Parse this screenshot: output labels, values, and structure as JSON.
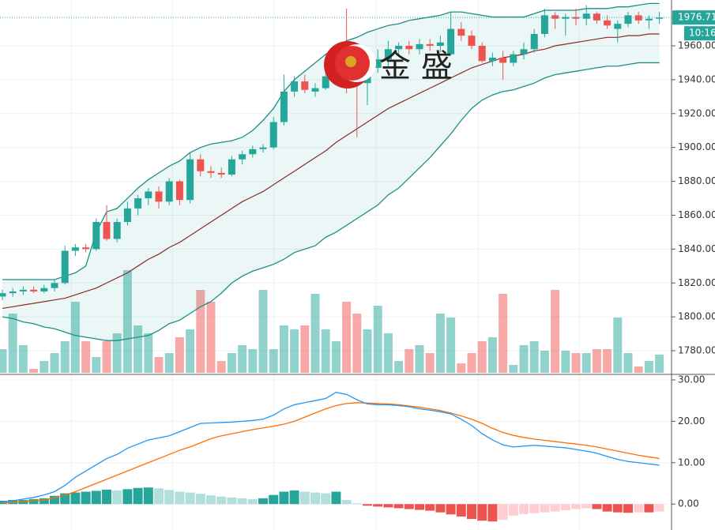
{
  "chart_data": [
    {
      "type": "candlestick",
      "open": [
        1812,
        1814,
        1815,
        1816,
        1815,
        1817,
        1820,
        1839,
        1841,
        1840,
        1856,
        1846,
        1856,
        1864,
        1870,
        1874,
        1868,
        1880,
        1869,
        1893,
        1886,
        1885,
        1884,
        1893,
        1896,
        1899,
        1900,
        1915,
        1933,
        1939,
        1933,
        1935,
        1942,
        1955,
        1946,
        1938,
        1947,
        1952,
        1958,
        1960,
        1958,
        1961,
        1960,
        1955,
        1970,
        1966,
        1960,
        1951,
        1953,
        1950,
        1955,
        1958,
        1967,
        1978,
        1976,
        1977,
        1976,
        1979,
        1975,
        1970,
        1973,
        1978,
        1975,
        1976
      ],
      "high": [
        1816,
        1817,
        1818,
        1818,
        1819,
        1822,
        1842,
        1843,
        1843,
        1858,
        1866,
        1858,
        1868,
        1872,
        1876,
        1877,
        1882,
        1881,
        1897,
        1896,
        1889,
        1888,
        1895,
        1898,
        1901,
        1902,
        1918,
        1943,
        1942,
        1943,
        1938,
        1945,
        1960,
        1982,
        1952,
        1950,
        1958,
        1963,
        1962,
        1963,
        1964,
        1964,
        1966,
        1980,
        1974,
        1969,
        1962,
        1956,
        1957,
        1957,
        1962,
        1970,
        1982,
        1980,
        1979,
        1982,
        1984,
        1980,
        1978,
        1975,
        1980,
        1980,
        1978,
        1980
      ],
      "low": [
        1810,
        1812,
        1813,
        1814,
        1814,
        1815,
        1819,
        1836,
        1838,
        1839,
        1845,
        1844,
        1854,
        1860,
        1866,
        1864,
        1866,
        1866,
        1867,
        1883,
        1882,
        1882,
        1883,
        1890,
        1894,
        1897,
        1899,
        1913,
        1930,
        1932,
        1930,
        1934,
        1940,
        1932,
        1906,
        1925,
        1944,
        1948,
        1954,
        1955,
        1955,
        1957,
        1956,
        1954,
        1963,
        1958,
        1950,
        1948,
        1940,
        1948,
        1952,
        1956,
        1965,
        1970,
        1966,
        1972,
        1972,
        1973,
        1970,
        1962,
        1971,
        1973,
        1970,
        1973
      ],
      "close": [
        1814,
        1815,
        1816,
        1815,
        1817,
        1820,
        1839,
        1841,
        1840,
        1856,
        1846,
        1856,
        1864,
        1870,
        1874,
        1868,
        1880,
        1869,
        1893,
        1886,
        1885,
        1884,
        1893,
        1896,
        1899,
        1900,
        1915,
        1933,
        1939,
        1934,
        1935,
        1942,
        1955,
        1935,
        1938,
        1947,
        1952,
        1958,
        1960,
        1958,
        1961,
        1960,
        1962,
        1970,
        1966,
        1960,
        1951,
        1953,
        1950,
        1955,
        1958,
        1967,
        1978,
        1976,
        1977,
        1976,
        1979,
        1975,
        1972,
        1973,
        1978,
        1975,
        1976,
        1976.71
      ],
      "volume": [
        30,
        75,
        35,
        5,
        15,
        25,
        40,
        90,
        40,
        20,
        40,
        50,
        130,
        60,
        50,
        20,
        25,
        45,
        55,
        105,
        90,
        15,
        25,
        35,
        30,
        105,
        30,
        60,
        55,
        60,
        100,
        55,
        40,
        90,
        75,
        55,
        85,
        50,
        15,
        30,
        35,
        25,
        75,
        70,
        12,
        25,
        40,
        45,
        100,
        10,
        35,
        40,
        28,
        105,
        28,
        25,
        25,
        30,
        30,
        70,
        25,
        8,
        15,
        23
      ],
      "upper": [
        1822,
        1822,
        1822,
        1822,
        1822,
        1822,
        1824,
        1826,
        1830,
        1850,
        1862,
        1864,
        1870,
        1876,
        1881,
        1885,
        1889,
        1892,
        1897,
        1900,
        1902,
        1903,
        1904,
        1906,
        1910,
        1916,
        1923,
        1933,
        1940,
        1945,
        1950,
        1955,
        1959,
        1963,
        1965,
        1968,
        1970,
        1972,
        1973,
        1975,
        1976,
        1977,
        1978,
        1980,
        1980,
        1979,
        1978,
        1977,
        1977,
        1977,
        1977,
        1979,
        1981,
        1981,
        1981,
        1981,
        1982,
        1982,
        1982,
        1983,
        1983,
        1984,
        1985,
        1985
      ],
      "middle": [
        1805,
        1806,
        1807,
        1808,
        1809,
        1810,
        1811,
        1813,
        1815,
        1817,
        1820,
        1823,
        1826,
        1830,
        1834,
        1837,
        1841,
        1844,
        1848,
        1852,
        1856,
        1860,
        1864,
        1868,
        1871,
        1874,
        1878,
        1882,
        1886,
        1890,
        1894,
        1898,
        1903,
        1907,
        1911,
        1915,
        1919,
        1923,
        1926,
        1929,
        1932,
        1935,
        1938,
        1941,
        1944,
        1947,
        1949,
        1951,
        1953,
        1954,
        1955,
        1957,
        1958,
        1960,
        1961,
        1962,
        1963,
        1964,
        1965,
        1965,
        1966,
        1966,
        1967,
        1967
      ],
      "lower": [
        1800,
        1799,
        1797,
        1796,
        1794,
        1793,
        1791,
        1789,
        1788,
        1787,
        1786,
        1786,
        1787,
        1788,
        1789,
        1792,
        1796,
        1798,
        1802,
        1806,
        1809,
        1814,
        1820,
        1824,
        1827,
        1829,
        1831,
        1834,
        1838,
        1840,
        1842,
        1847,
        1850,
        1854,
        1858,
        1862,
        1866,
        1872,
        1876,
        1882,
        1888,
        1894,
        1901,
        1908,
        1916,
        1923,
        1928,
        1931,
        1933,
        1934,
        1936,
        1938,
        1941,
        1943,
        1944,
        1945,
        1946,
        1947,
        1948,
        1948,
        1949,
        1950,
        1950,
        1950
      ],
      "up_color": "#26a69a",
      "down_color": "#ef5350",
      "band_color": "#1b8f84",
      "middle_color": "#8d2a25",
      "band_fill": "rgba(38,166,154,0.09)",
      "ylim": [
        1766.5,
        1987.05
      ],
      "yticks": [
        {
          "value": 1780,
          "label": "1780.00"
        },
        {
          "value": 1800,
          "label": "1800.00"
        },
        {
          "value": 1820,
          "label": "1820.00"
        },
        {
          "value": 1840,
          "label": "1840.00"
        },
        {
          "value": 1860,
          "label": "1860.00"
        },
        {
          "value": 1880,
          "label": "1880.00"
        },
        {
          "value": 1900,
          "label": "1900.00"
        },
        {
          "value": 1920,
          "label": "1920.00"
        },
        {
          "value": 1940,
          "label": "1940.00"
        },
        {
          "value": 1960,
          "label": "1960.00"
        }
      ],
      "grid": true,
      "countdown": "10:16",
      "watermark": "金 盛"
    },
    {
      "type": "macd",
      "dif": [
        0.5,
        0.8,
        1.2,
        1.6,
        2.2,
        3.0,
        4.5,
        6.5,
        8.0,
        9.5,
        11.0,
        12.0,
        13.5,
        14.5,
        15.5,
        16.0,
        16.5,
        17.5,
        18.5,
        19.5,
        19.6,
        19.7,
        19.8,
        20.0,
        20.2,
        20.5,
        21.5,
        23.0,
        24.0,
        24.5,
        25.0,
        25.5,
        27.0,
        26.5,
        25.2,
        24.2,
        24.0,
        24.0,
        23.8,
        23.5,
        23.0,
        22.7,
        22.3,
        21.8,
        20.5,
        19.0,
        17.0,
        15.5,
        14.3,
        13.8,
        14.0,
        14.2,
        14.0,
        13.8,
        13.6,
        13.2,
        12.8,
        12.3,
        11.5,
        10.8,
        10.3,
        10.0,
        9.7,
        9.4
      ],
      "dea": [
        0.3,
        0.4,
        0.6,
        0.8,
        1.0,
        1.5,
        2.2,
        3.0,
        4.0,
        5.0,
        6.0,
        7.0,
        8.0,
        9.0,
        10.0,
        11.0,
        12.0,
        13.0,
        13.8,
        14.8,
        15.8,
        16.5,
        17.0,
        17.5,
        18.0,
        18.4,
        18.8,
        19.3,
        20.0,
        21.0,
        22.0,
        23.0,
        23.8,
        24.3,
        24.5,
        24.4,
        24.3,
        24.2,
        24.0,
        23.7,
        23.4,
        23.0,
        22.6,
        22.0,
        21.3,
        20.5,
        19.5,
        18.3,
        17.3,
        16.6,
        16.1,
        15.7,
        15.4,
        15.1,
        14.8,
        14.5,
        14.2,
        13.8,
        13.3,
        12.8,
        12.3,
        11.8,
        11.4,
        11.0
      ],
      "hist": [
        0.8,
        1.0,
        1.0,
        1.2,
        1.4,
        2.0,
        2.6,
        2.8,
        3.0,
        3.2,
        3.5,
        3.3,
        3.6,
        3.9,
        4.0,
        3.8,
        3.4,
        3.0,
        2.8,
        2.5,
        2.1,
        1.8,
        1.6,
        1.4,
        1.2,
        1.4,
        2.2,
        3.0,
        3.3,
        3.0,
        2.8,
        2.6,
        3.0,
        1.0,
        0.2,
        -0.4,
        -0.6,
        -0.8,
        -1.0,
        -1.2,
        -1.4,
        -1.6,
        -2.0,
        -2.5,
        -3.0,
        -3.6,
        -4.0,
        -4.2,
        -3.8,
        -2.8,
        -2.4,
        -2.2,
        -2.0,
        -1.8,
        -1.5,
        -1.2,
        -1.0,
        -1.2,
        -1.8,
        -2.0,
        -2.1,
        -2.0,
        -2.0,
        -1.8
      ],
      "dif_color": "#2196f3",
      "dea_color": "#ff6d00",
      "hist_colors": [
        "#26a69a",
        "#b2dfdb",
        "#ef5350",
        "#ffcdd2"
      ],
      "ylim": [
        -6.26,
        31.14
      ],
      "yticks": [
        {
          "value": 0,
          "label": "0.00"
        },
        {
          "value": 10,
          "label": "10.00"
        },
        {
          "value": 20,
          "label": "20.00"
        },
        {
          "value": 30,
          "label": "30.00"
        }
      ],
      "grid": true
    }
  ]
}
